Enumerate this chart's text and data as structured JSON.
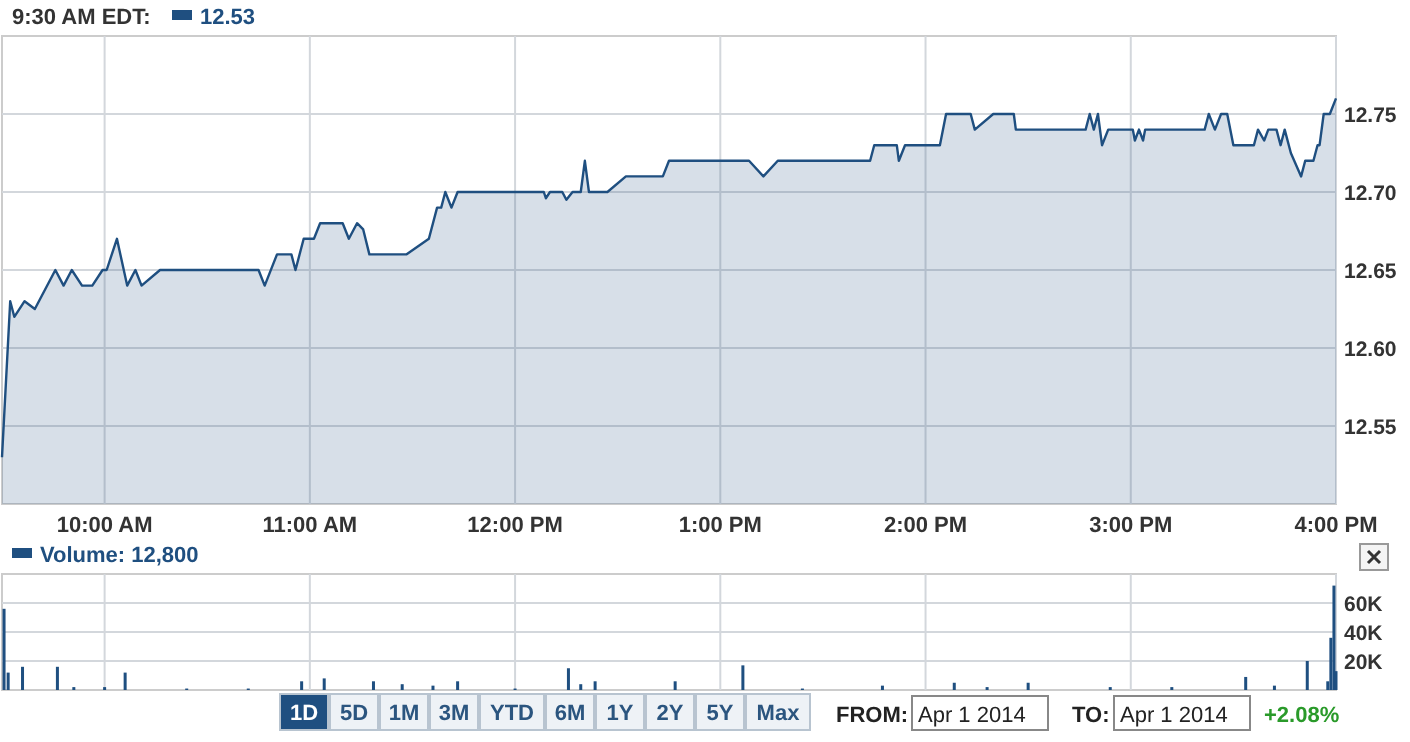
{
  "chart_data": [
    {
      "type": "area",
      "annotations": [
        "9:30 AM EDT:"
      ],
      "legend": "top left",
      "grid": true,
      "xlim": [
        9.5,
        16
      ],
      "xticks": [
        {
          "value": 10,
          "label": "10:00 AM"
        },
        {
          "value": 11,
          "label": "11:00 AM"
        },
        {
          "value": 12,
          "label": "12:00 PM"
        },
        {
          "value": 13,
          "label": "1:00 PM"
        },
        {
          "value": 14,
          "label": "2:00 PM"
        },
        {
          "value": 15,
          "label": "3:00 PM"
        },
        {
          "value": 16,
          "label": "4:00 PM"
        }
      ],
      "ylim": [
        12.5,
        12.8
      ],
      "yticks": [
        12.55,
        {
          "value": 12.6,
          "label": "12.60"
        },
        12.65,
        {
          "value": 12.7,
          "label": "12.70"
        },
        12.75
      ],
      "series": [
        {
          "name": "12.53",
          "color": "#1f4f80",
          "x": [
            9.5,
            9.54,
            9.56,
            9.61,
            9.66,
            9.76,
            9.8,
            9.84,
            9.89,
            9.94,
            9.99,
            10.01,
            10.06,
            10.11,
            10.15,
            10.18,
            10.27,
            10.75,
            10.78,
            10.84,
            10.91,
            10.93,
            10.97,
            11.02,
            11.05,
            11.16,
            11.19,
            11.23,
            11.26,
            11.29,
            11.47,
            11.58,
            11.62,
            11.64,
            11.66,
            11.69,
            11.72,
            12.14,
            12.15,
            12.17,
            12.23,
            12.25,
            12.28,
            12.32,
            12.34,
            12.36,
            12.45,
            12.54,
            12.72,
            12.75,
            12.98,
            13.14,
            13.21,
            13.28,
            13.73,
            13.75,
            13.86,
            13.87,
            13.9,
            14.07,
            14.1,
            14.22,
            14.24,
            14.33,
            14.43,
            14.44,
            14.78,
            14.8,
            14.82,
            14.84,
            14.86,
            14.89,
            15.01,
            15.02,
            15.04,
            15.06,
            15.07,
            15.36,
            15.38,
            15.41,
            15.44,
            15.47,
            15.5,
            15.6,
            15.62,
            15.65,
            15.67,
            15.71,
            15.73,
            15.75,
            15.78,
            15.83,
            15.85,
            15.89,
            15.91,
            15.92,
            15.94,
            15.97,
            16
          ],
          "values": [
            12.53,
            12.63,
            12.62,
            12.63,
            12.625,
            12.65,
            12.64,
            12.65,
            12.64,
            12.64,
            12.65,
            12.65,
            12.67,
            12.64,
            12.65,
            12.64,
            12.65,
            12.65,
            12.64,
            12.66,
            12.66,
            12.65,
            12.67,
            12.67,
            12.68,
            12.68,
            12.67,
            12.68,
            12.676,
            12.66,
            12.66,
            12.67,
            12.69,
            12.69,
            12.7,
            12.69,
            12.7,
            12.7,
            12.696,
            12.7,
            12.7,
            12.695,
            12.7,
            12.7,
            12.72,
            12.7,
            12.7,
            12.71,
            12.71,
            12.72,
            12.72,
            12.72,
            12.71,
            12.72,
            12.72,
            12.73,
            12.73,
            12.72,
            12.73,
            12.73,
            12.75,
            12.75,
            12.74,
            12.75,
            12.75,
            12.74,
            12.74,
            12.75,
            12.74,
            12.75,
            12.73,
            12.74,
            12.74,
            12.733,
            12.74,
            12.733,
            12.74,
            12.74,
            12.75,
            12.74,
            12.75,
            12.75,
            12.73,
            12.73,
            12.74,
            12.733,
            12.74,
            12.74,
            12.73,
            12.74,
            12.725,
            12.71,
            12.72,
            12.72,
            12.73,
            12.73,
            12.75,
            12.75,
            12.76
          ]
        }
      ]
    },
    {
      "type": "bar",
      "legend": "top left",
      "grid": true,
      "tick_labels": "y",
      "xlim": [
        9.5,
        16
      ],
      "xticks": [
        {
          "value": 10,
          "label": null
        },
        {
          "value": 11,
          "label": null
        },
        {
          "value": 12,
          "label": null
        },
        {
          "value": 13,
          "label": null
        },
        {
          "value": 14,
          "label": null
        },
        {
          "value": 15,
          "label": null
        },
        {
          "value": 16,
          "label": null
        }
      ],
      "ylim": [
        0,
        80000
      ],
      "yticks": [
        {
          "value": 20000,
          "label": "20K"
        },
        {
          "value": 40000,
          "label": "40K"
        },
        {
          "value": 60000,
          "label": "60K"
        }
      ],
      "series": [
        {
          "name": "Volume: 12,800",
          "color": "#1f4f80",
          "x": [
            9.51,
            9.53,
            9.6,
            9.77,
            9.85,
            10.0,
            10.1,
            10.4,
            10.7,
            10.96,
            11.07,
            11.31,
            11.45,
            11.6,
            11.72,
            12.0,
            12.26,
            12.32,
            12.39,
            12.78,
            13.11,
            13.4,
            13.79,
            14.14,
            14.3,
            14.5,
            14.9,
            15.2,
            15.56,
            15.7,
            15.86,
            15.96,
            15.975,
            15.99,
            16
          ],
          "values": [
            56000,
            12000,
            16000,
            16000,
            2000,
            2000,
            12000,
            1000,
            1000,
            6000,
            8000,
            6000,
            4000,
            3000,
            6000,
            1000,
            15000,
            4000,
            6000,
            6000,
            17000,
            1000,
            3000,
            5000,
            2000,
            5000,
            2000,
            2000,
            9000,
            3000,
            20000,
            6000,
            36000,
            72000,
            13000
          ]
        }
      ]
    },
    {
      "type": "other",
      "annotations": [
        "1D",
        "5D",
        "1M",
        "3M",
        "YTD",
        "6M",
        "1Y",
        "2Y",
        "5Y",
        "Max",
        "FROM:",
        "Apr 1 2014",
        "TO:",
        "Apr 1 2014",
        "+2.08%"
      ]
    }
  ]
}
